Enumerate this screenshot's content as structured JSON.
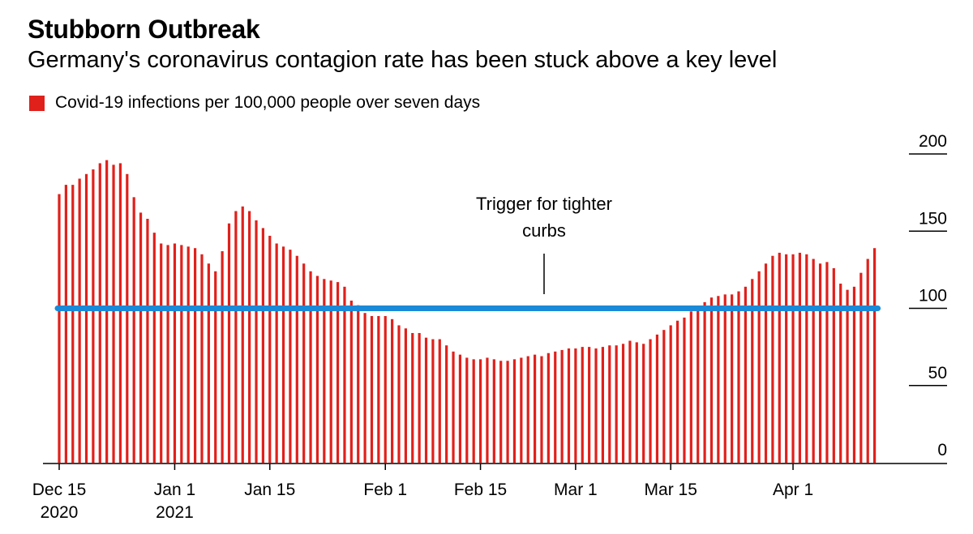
{
  "colors": {
    "bar": "#e0201b",
    "threshold": "#1a8ad8",
    "axis": "#000000"
  },
  "chart_data": {
    "type": "bar",
    "title": "Stubborn Outbreak",
    "subtitle": "Germany's coronavirus contagion rate has been stuck above a key level",
    "legend": "Covid-19 infections per 100,000 people over seven days",
    "ylim": [
      0,
      200
    ],
    "y_ticks": [
      0,
      50,
      100,
      150,
      200
    ],
    "y_tick_labels": [
      "0",
      "50",
      "100",
      "150",
      "200"
    ],
    "threshold": {
      "value": 100,
      "label_line1": "Trigger for tighter",
      "label_line2": "curbs"
    },
    "x_ticks": [
      {
        "index": 0,
        "line1": "Dec 15",
        "line2": "2020"
      },
      {
        "index": 17,
        "line1": "Jan 1",
        "line2": "2021"
      },
      {
        "index": 31,
        "line1": "Jan 15",
        "line2": ""
      },
      {
        "index": 48,
        "line1": "Feb 1",
        "line2": ""
      },
      {
        "index": 62,
        "line1": "Feb 15",
        "line2": ""
      },
      {
        "index": 76,
        "line1": "Mar 1",
        "line2": ""
      },
      {
        "index": 90,
        "line1": "Mar 15",
        "line2": ""
      },
      {
        "index": 108,
        "line1": "Apr 1",
        "line2": ""
      }
    ],
    "start_date": "Dec 15 2020",
    "values": [
      174,
      180,
      180,
      184,
      187,
      190,
      194,
      196,
      193,
      194,
      187,
      172,
      162,
      158,
      149,
      142,
      141,
      142,
      141,
      140,
      139,
      135,
      129,
      124,
      137,
      155,
      163,
      166,
      163,
      157,
      152,
      147,
      142,
      140,
      138,
      134,
      129,
      124,
      121,
      119,
      118,
      117,
      114,
      105,
      102,
      97,
      95,
      95,
      95,
      93,
      89,
      87,
      84,
      84,
      81,
      80,
      80,
      76,
      72,
      70,
      68,
      67,
      67,
      68,
      67,
      66,
      66,
      67,
      68,
      69,
      70,
      69,
      71,
      72,
      73,
      74,
      74,
      75,
      75,
      74,
      75,
      76,
      76,
      77,
      79,
      78,
      77,
      80,
      83,
      86,
      89,
      92,
      94,
      98,
      101,
      104,
      107,
      108,
      109,
      109,
      111,
      114,
      119,
      124,
      129,
      134,
      136,
      135,
      135,
      136,
      135,
      132,
      129,
      130,
      126,
      116,
      112,
      114,
      123,
      132,
      139
    ]
  }
}
